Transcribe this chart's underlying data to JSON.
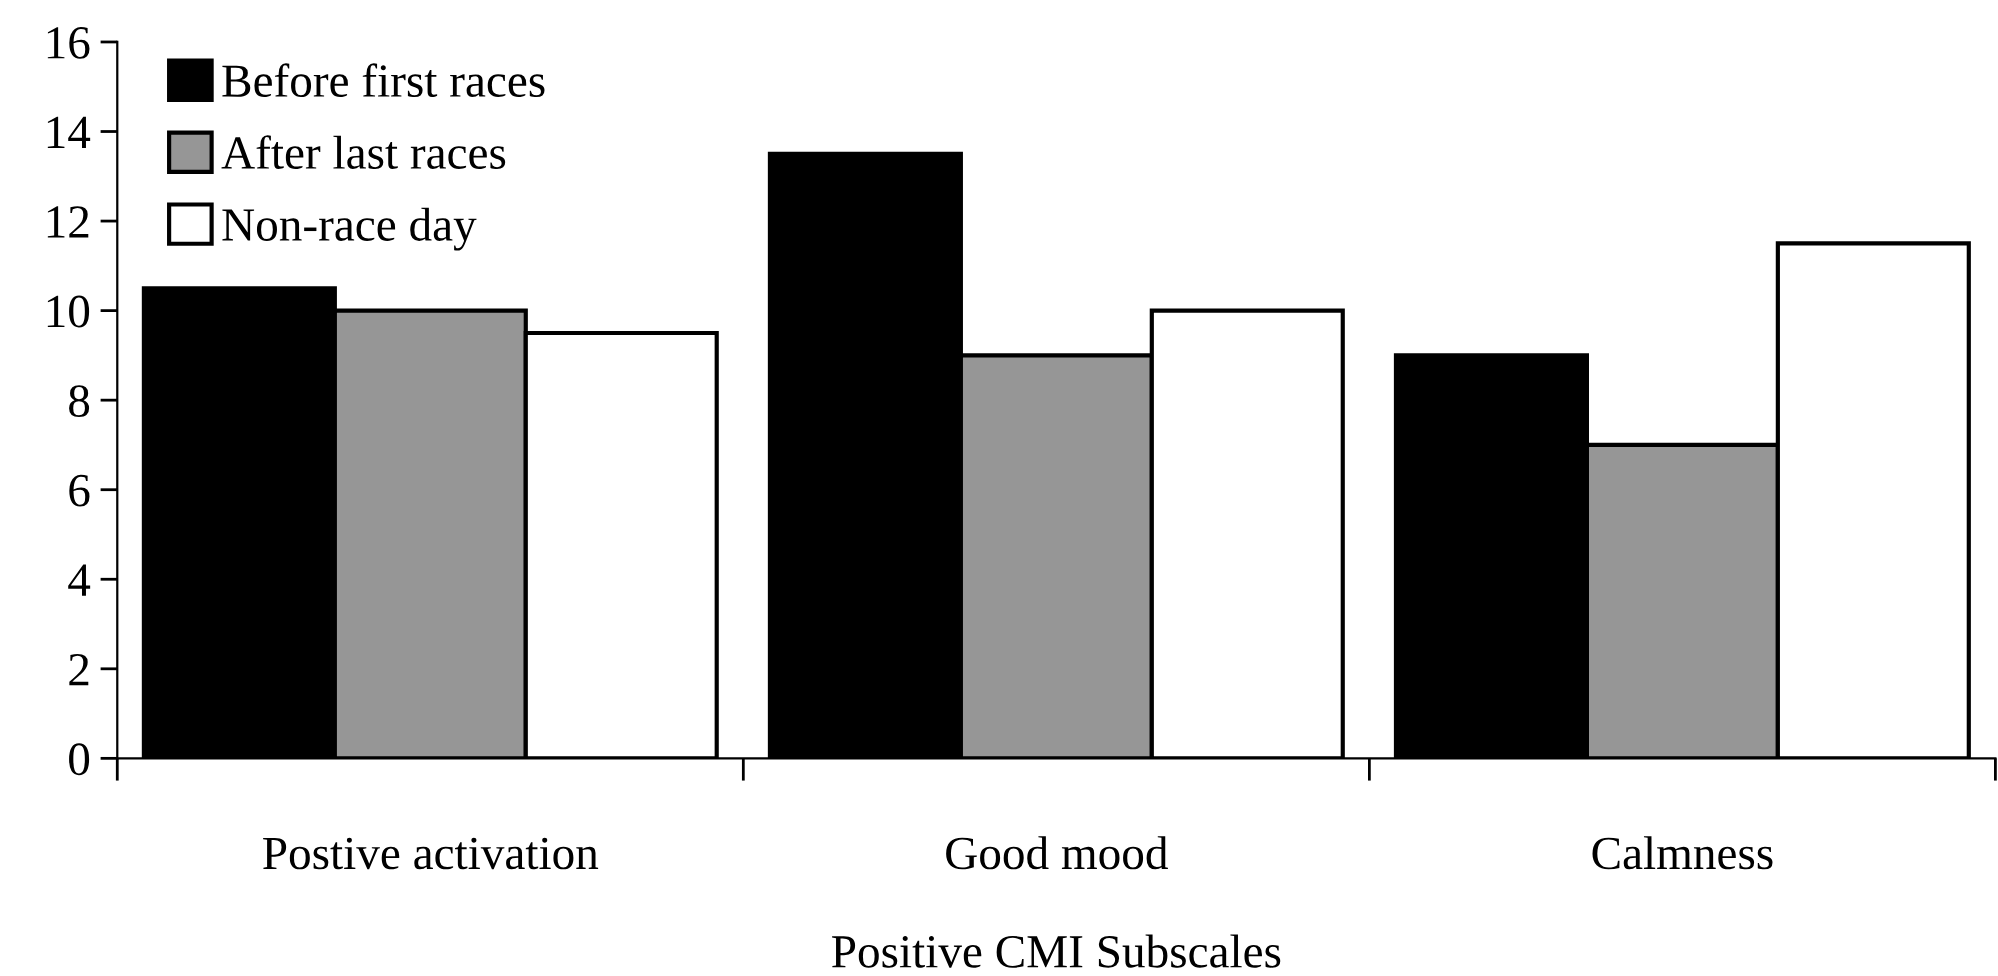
{
  "chart_data": {
    "type": "bar",
    "xlabel": "Positive CMI Subscales",
    "categories": [
      "Postive activation",
      "Good mood",
      "Calmness"
    ],
    "series": [
      {
        "name": "Before first races",
        "color": "#000000",
        "values": [
          10.5,
          13.5,
          9
        ]
      },
      {
        "name": "After last races",
        "color": "#969696",
        "values": [
          10,
          9,
          7
        ]
      },
      {
        "name": "Non-race day",
        "color": "#ffffff",
        "values": [
          9.5,
          10,
          11.5
        ]
      }
    ],
    "ylim": [
      0,
      16
    ],
    "yticks": [
      0,
      2,
      4,
      6,
      8,
      10,
      12,
      14,
      16
    ],
    "grid": false,
    "legend": "top left"
  }
}
